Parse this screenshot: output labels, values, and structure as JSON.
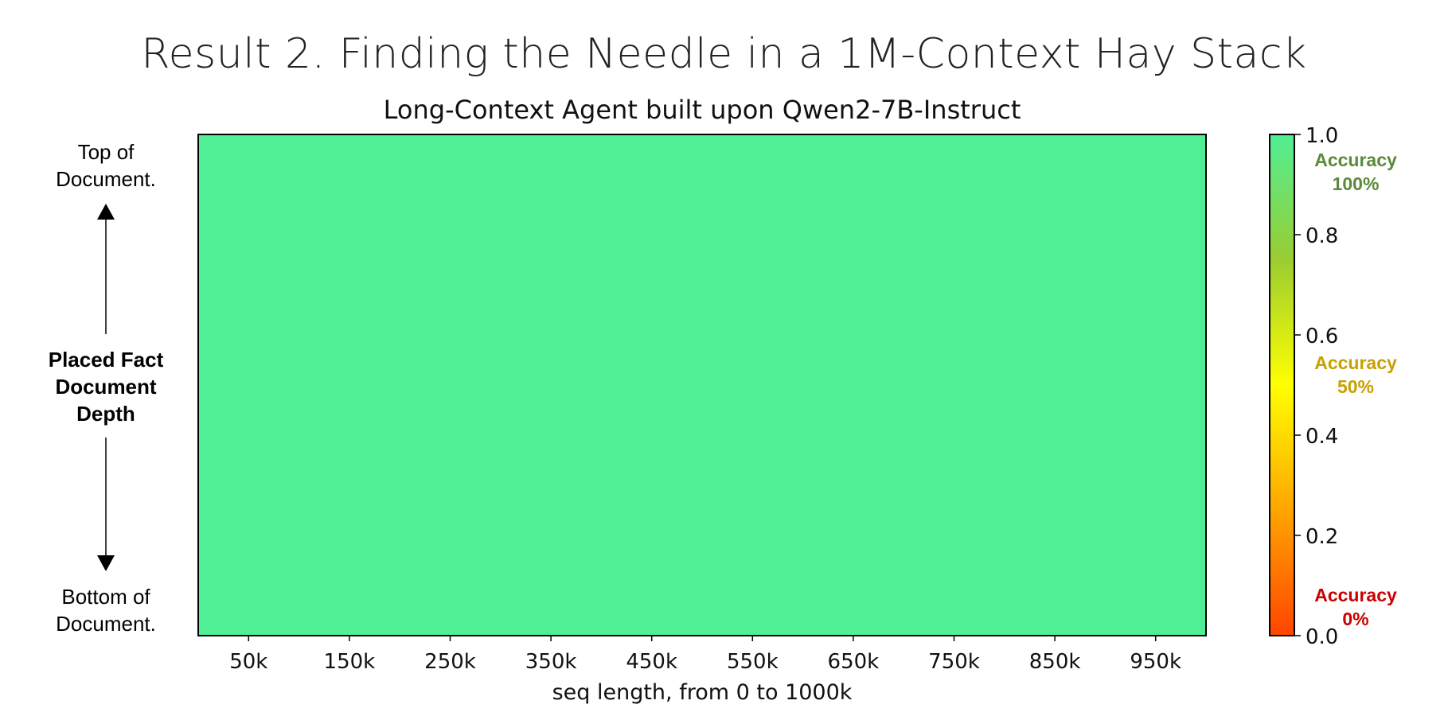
{
  "page": {
    "headline": "Result 2. Finding the Needle in a 1M-Context Hay Stack"
  },
  "side_labels": {
    "top": [
      "Top of",
      "Document."
    ],
    "middle": [
      "Placed Fact",
      "Document",
      "Depth"
    ],
    "bottom": [
      "Bottom of",
      "Document."
    ]
  },
  "colorbar": {
    "colors": [
      "#ff4500",
      "#ffa500",
      "#ffff00",
      "#9acd32",
      "#50ef95"
    ],
    "range": [
      0,
      1
    ],
    "ticks": [
      "0.0",
      "0.2",
      "0.4",
      "0.6",
      "0.8",
      "1.0"
    ],
    "notes": [
      {
        "lines": [
          "Accuracy",
          "100%"
        ],
        "color": "#5a8a3a"
      },
      {
        "lines": [
          "Accuracy",
          "50%"
        ],
        "color": "#c8a000"
      },
      {
        "lines": [
          "Accuracy",
          "0%"
        ],
        "color": "#cc0000"
      }
    ]
  },
  "chart_data": {
    "type": "heatmap",
    "title": "Long-Context Agent built upon Qwen2-7B-Instruct",
    "xlabel": "seq length, from 0 to 1000k",
    "ylabel": "",
    "x": [
      "50k",
      "150k",
      "250k",
      "350k",
      "450k",
      "550k",
      "650k",
      "750k",
      "850k",
      "950k"
    ],
    "y_rows": 1,
    "values": [
      [
        1.0,
        1.0,
        1.0,
        1.0,
        1.0,
        1.0,
        1.0,
        1.0,
        1.0,
        1.0
      ]
    ],
    "cell_color": "#50ef95",
    "zlim": [
      0,
      1
    ]
  }
}
